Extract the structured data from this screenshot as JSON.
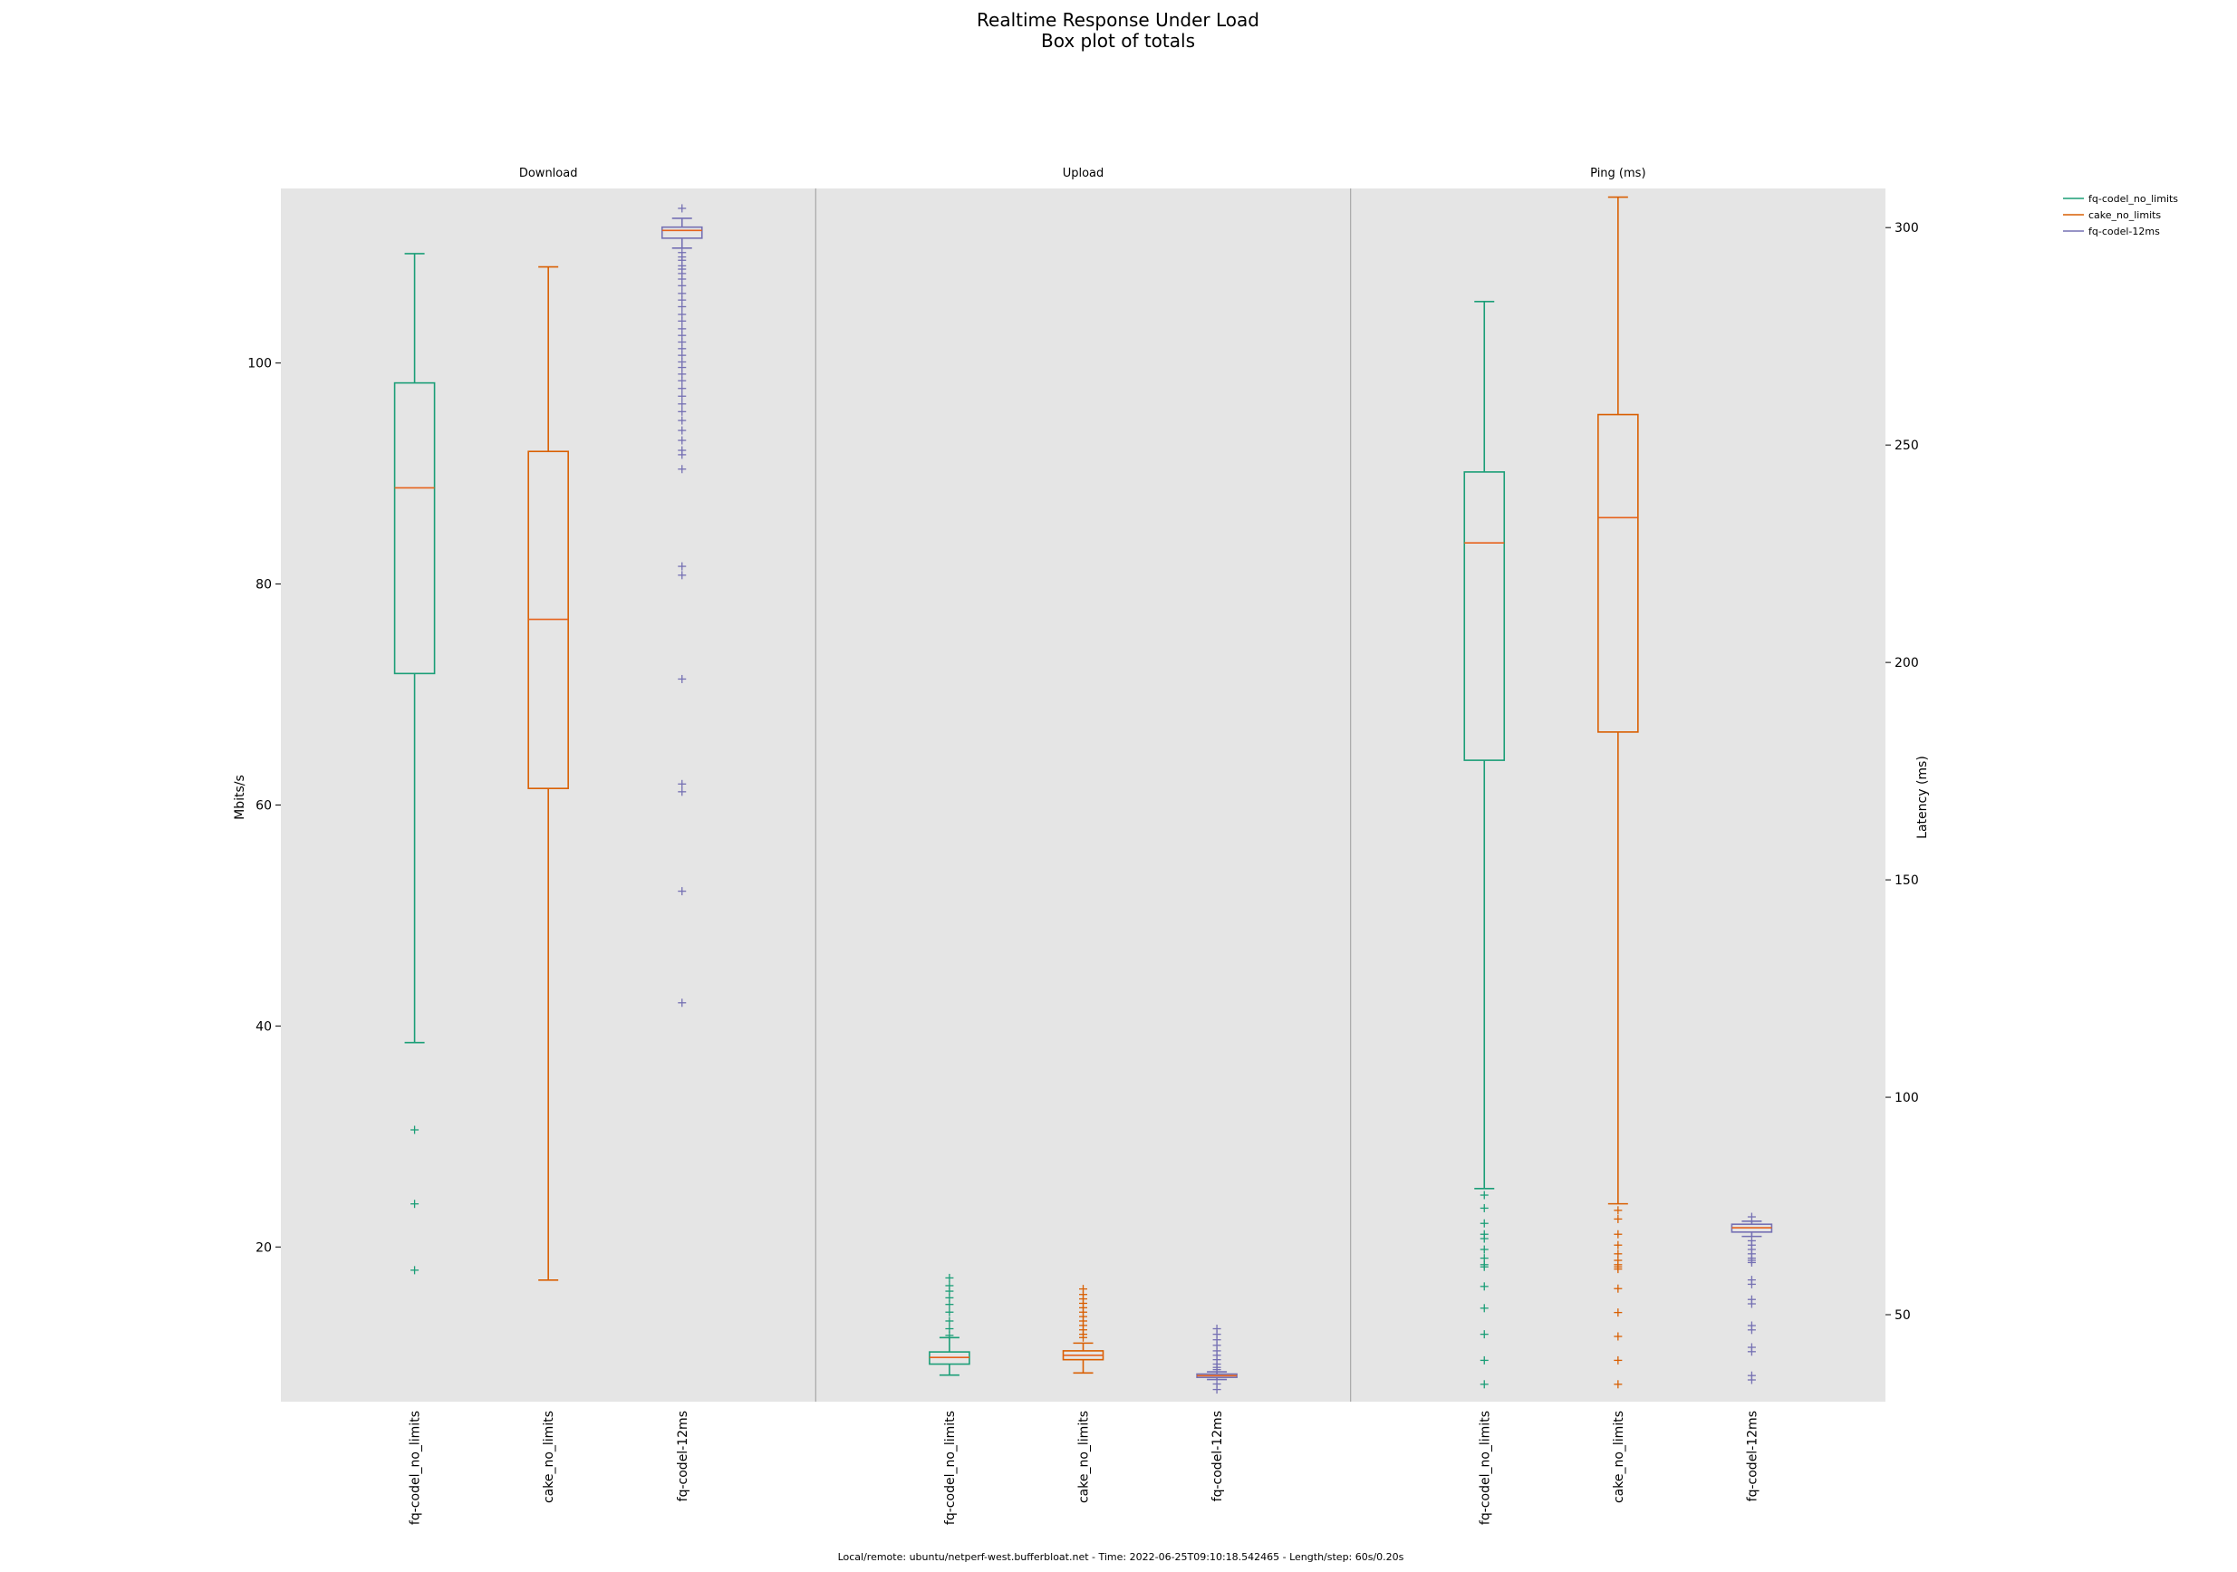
{
  "chart_data": {
    "type": "boxplot",
    "title": "Realtime Response Under Load",
    "subtitle": "Box plot of totals",
    "footer": "Local/remote: ubuntu/netperf-west.bufferbloat.net - Time: 2022-06-25T09:10:18.542465 - Length/step: 60s/0.20s",
    "left_axis": {
      "label": "Mbits/s",
      "ticks": [
        20,
        40,
        60,
        80,
        100
      ],
      "range": [
        6,
        115.8
      ]
    },
    "right_axis": {
      "label": "Latency (ms)",
      "ticks": [
        50,
        100,
        150,
        200,
        250,
        300
      ],
      "range": [
        30,
        309
      ]
    },
    "legend": {
      "placement": "outside-top-right",
      "entries": [
        {
          "name": "fq-codel_no_limits",
          "color": "#1b9e77"
        },
        {
          "name": "cake_no_limits",
          "color": "#d95f02"
        },
        {
          "name": "fq-codel-12ms",
          "color": "#7570b3"
        }
      ]
    },
    "colors": {
      "fq-codel_no_limits": "#1b9e77",
      "cake_no_limits": "#d95f02",
      "fq-codel-12ms": "#7570b3",
      "median": "#e6621c",
      "background": "#e5e5e5",
      "divider": "#a8a8a8"
    },
    "panels": [
      {
        "title": "Download",
        "axis": "left",
        "boxes": [
          {
            "name": "fq-codel_no_limits",
            "whisker_low": 38.5,
            "q1": 71.9,
            "median": 88.7,
            "q3": 98.2,
            "whisker_high": 109.9,
            "fliers": [
              30.6,
              23.9,
              17.9
            ]
          },
          {
            "name": "cake_no_limits",
            "whisker_low": 17.0,
            "q1": 61.5,
            "median": 76.8,
            "q3": 92.0,
            "whisker_high": 108.7,
            "fliers": []
          },
          {
            "name": "fq-codel-12ms",
            "whisker_low": 110.4,
            "q1": 111.3,
            "median": 112.0,
            "q3": 112.3,
            "whisker_high": 113.1,
            "fliers": [
              114.0,
              110.0,
              109.6,
              109.3,
              108.8,
              108.5,
              108.1,
              107.6,
              107.0,
              106.3,
              105.7,
              105.1,
              104.4,
              103.8,
              103.1,
              102.5,
              101.9,
              101.3,
              100.7,
              100.1,
              99.6,
              99.0,
              98.4,
              97.7,
              97.0,
              96.3,
              95.6,
              94.8,
              93.9,
              93.0,
              92.1,
              91.7,
              90.4,
              81.6,
              80.8,
              71.4,
              61.9,
              61.2,
              52.2,
              42.1
            ]
          }
        ]
      },
      {
        "title": "Upload",
        "axis": "left",
        "boxes": [
          {
            "name": "fq-codel_no_limits",
            "whisker_low": 8.4,
            "q1": 9.4,
            "median": 10.0,
            "q3": 10.5,
            "whisker_high": 11.8,
            "fliers": [
              17.2,
              16.5,
              16.0,
              15.4,
              14.8,
              14.1,
              13.3,
              12.6,
              12.0
            ]
          },
          {
            "name": "cake_no_limits",
            "whisker_low": 8.6,
            "q1": 9.8,
            "median": 10.2,
            "q3": 10.6,
            "whisker_high": 11.3,
            "fliers": [
              16.2,
              15.7,
              15.3,
              14.9,
              14.5,
              14.1,
              13.7,
              13.3,
              12.9,
              12.5,
              12.1,
              11.8
            ]
          },
          {
            "name": "fq-codel-12ms",
            "whisker_low": 8.0,
            "q1": 8.2,
            "median": 8.35,
            "q3": 8.5,
            "whisker_high": 8.7,
            "fliers": [
              12.6,
              12.1,
              11.6,
              11.1,
              10.6,
              10.2,
              9.8,
              9.4,
              9.1,
              8.9,
              7.6,
              7.1
            ]
          }
        ]
      },
      {
        "title": "Ping (ms)",
        "axis": "right",
        "boxes": [
          {
            "name": "fq-codel_no_limits",
            "whisker_low": 79.0,
            "q1": 177.5,
            "median": 227.5,
            "q3": 243.8,
            "whisker_high": 283.0,
            "fliers": [
              77.5,
              74.5,
              71.0,
              68.5,
              67.5,
              65.0,
              63.0,
              61.5,
              61.0,
              56.5,
              51.5,
              45.5,
              39.5,
              34.0
            ]
          },
          {
            "name": "cake_no_limits",
            "whisker_low": 75.5,
            "q1": 184.0,
            "median": 233.3,
            "q3": 257.0,
            "whisker_high": 307.0,
            "fliers": [
              74.0,
              72.0,
              68.5,
              66.0,
              64.0,
              62.5,
              61.5,
              61.0,
              60.5,
              56.0,
              50.5,
              45.0,
              39.5,
              34.0
            ]
          },
          {
            "name": "fq-codel-12ms",
            "whisker_low": 68.0,
            "q1": 69.0,
            "median": 70.0,
            "q3": 70.8,
            "whisker_high": 71.5,
            "fliers": [
              72.5,
              67.0,
              66.0,
              65.0,
              64.0,
              63.0,
              62.5,
              62.0,
              58.0,
              57.0,
              53.5,
              52.5,
              47.5,
              46.5,
              42.5,
              41.5,
              36.0,
              35.0
            ]
          }
        ]
      }
    ]
  }
}
